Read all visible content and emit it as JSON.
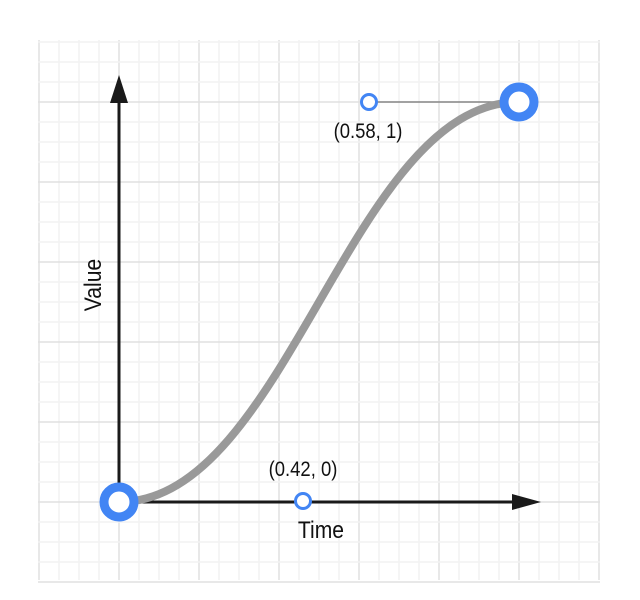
{
  "diagram": {
    "type": "cubic-bezier-easing",
    "control_points": [
      [
        0,
        0
      ],
      [
        0.42,
        0
      ],
      [
        0.58,
        1
      ],
      [
        1,
        1
      ]
    ],
    "x_axis_label": "Time",
    "y_axis_label": "Value",
    "p1_label": "(0.42, 0)",
    "p2_label": "(0.58, 1)",
    "colors": {
      "curve": "#999999",
      "point": "#4285F4",
      "axis": "#1a1a1a",
      "grid_major": "#e0e0e0",
      "grid_minor": "#f2f2f2"
    }
  }
}
